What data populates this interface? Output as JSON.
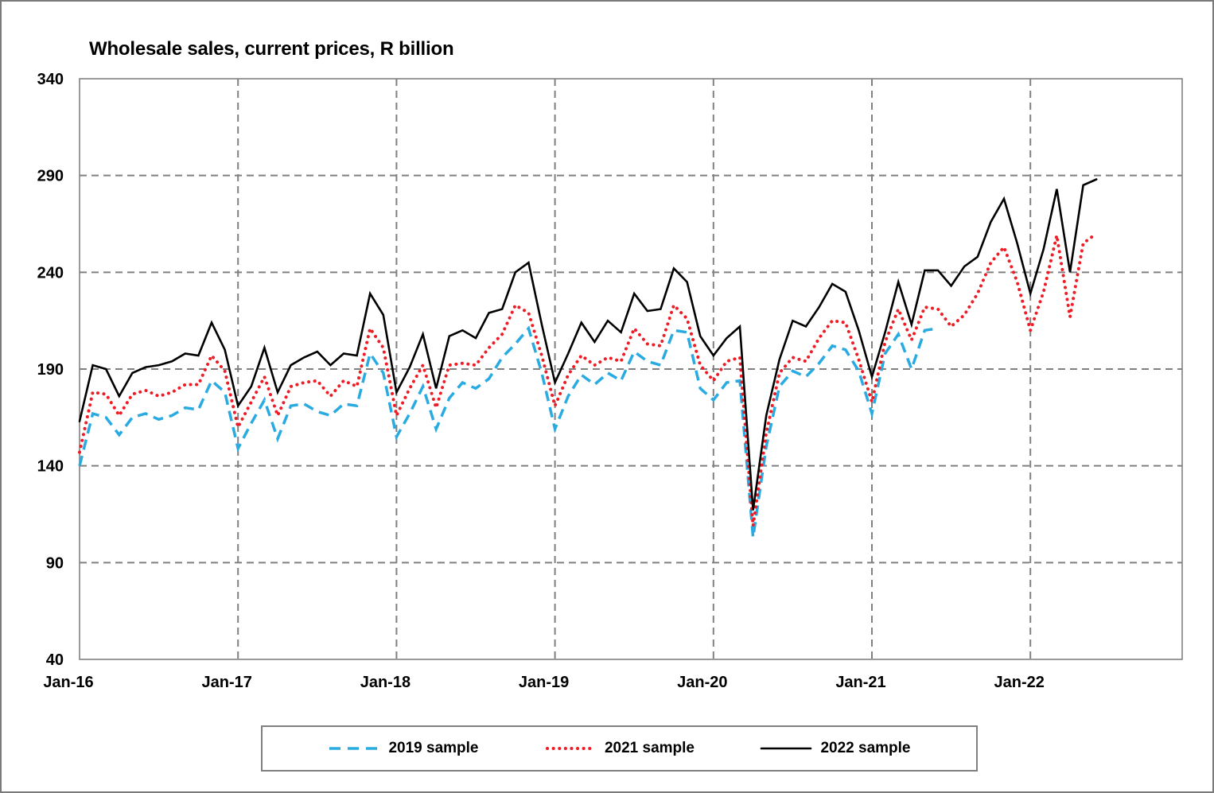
{
  "window": {
    "background": "#ffffff",
    "frame_border_color": "#7a7a7a"
  },
  "chart_data": {
    "type": "line",
    "title": "Wholesale sales, current prices, R billion",
    "xlabel": "",
    "ylabel": "",
    "ylim": [
      40,
      340
    ],
    "y_ticks": [
      40,
      90,
      140,
      190,
      240,
      290,
      340
    ],
    "x_tick_labels": [
      "Jan-16",
      "Jan-17",
      "Jan-18",
      "Jan-19",
      "Jan-20",
      "Jan-21",
      "Jan-22"
    ],
    "x_tick_month_indexes": [
      0,
      12,
      24,
      36,
      48,
      60,
      72
    ],
    "frequency": "monthly",
    "x_start": "Jan-16",
    "grid": {
      "on": true,
      "color": "#808080",
      "dash": "9 6"
    },
    "axis_color": "#808080",
    "text_color": "#000000",
    "legend_position": "bottom",
    "series": [
      {
        "name": "2019 sample",
        "color": "#29abe2",
        "style": "dashed",
        "start_month": "Jan-16",
        "end_month": "Jun-21",
        "values": [
          140,
          167,
          165,
          156,
          165,
          167,
          164,
          166,
          170,
          169,
          184,
          178,
          149,
          162,
          174,
          154,
          171,
          172,
          168,
          166,
          172,
          171,
          198,
          188,
          155,
          167,
          181,
          159,
          175,
          183,
          180,
          185,
          196,
          203,
          211,
          188,
          159,
          176,
          187,
          182,
          188,
          184,
          199,
          194,
          192,
          210,
          209,
          180,
          174,
          183,
          184,
          103,
          150,
          181,
          189,
          186,
          193,
          202,
          200,
          189,
          167,
          198,
          208,
          190,
          210,
          211
        ]
      },
      {
        "name": "2021 sample",
        "color": "#ee1c25",
        "style": "dotted",
        "start_month": "Jan-16",
        "end_month": "Jun-22",
        "values": [
          147,
          178,
          177,
          166,
          177,
          179,
          176,
          178,
          182,
          182,
          197,
          189,
          160,
          173,
          186,
          166,
          181,
          183,
          184,
          176,
          184,
          181,
          211,
          201,
          166,
          180,
          192,
          170,
          192,
          193,
          192,
          201,
          208,
          223,
          219,
          197,
          171,
          187,
          197,
          192,
          196,
          194,
          211,
          203,
          202,
          223,
          216,
          192,
          184,
          194,
          196,
          109,
          157,
          188,
          196,
          194,
          206,
          215,
          214,
          195,
          173,
          204,
          221,
          205,
          222,
          221,
          212,
          218,
          229,
          245,
          253,
          235,
          210,
          230,
          259,
          217,
          255,
          260
        ]
      },
      {
        "name": "2022 sample",
        "color": "#000000",
        "style": "solid",
        "start_month": "Jan-16",
        "end_month": "Jun-22",
        "values": [
          163,
          192,
          190,
          176,
          188,
          191,
          192,
          194,
          198,
          197,
          214,
          200,
          171,
          181,
          201,
          178,
          192,
          196,
          199,
          192,
          198,
          197,
          229,
          218,
          178,
          191,
          208,
          180,
          207,
          210,
          206,
          219,
          221,
          240,
          245,
          213,
          183,
          198,
          214,
          204,
          215,
          209,
          229,
          220,
          221,
          242,
          235,
          207,
          197,
          206,
          212,
          117,
          166,
          195,
          215,
          212,
          222,
          234,
          230,
          210,
          186,
          209,
          235,
          213,
          241,
          241,
          233,
          243,
          248,
          266,
          278,
          255,
          229,
          252,
          283,
          240,
          285,
          288
        ]
      }
    ]
  }
}
